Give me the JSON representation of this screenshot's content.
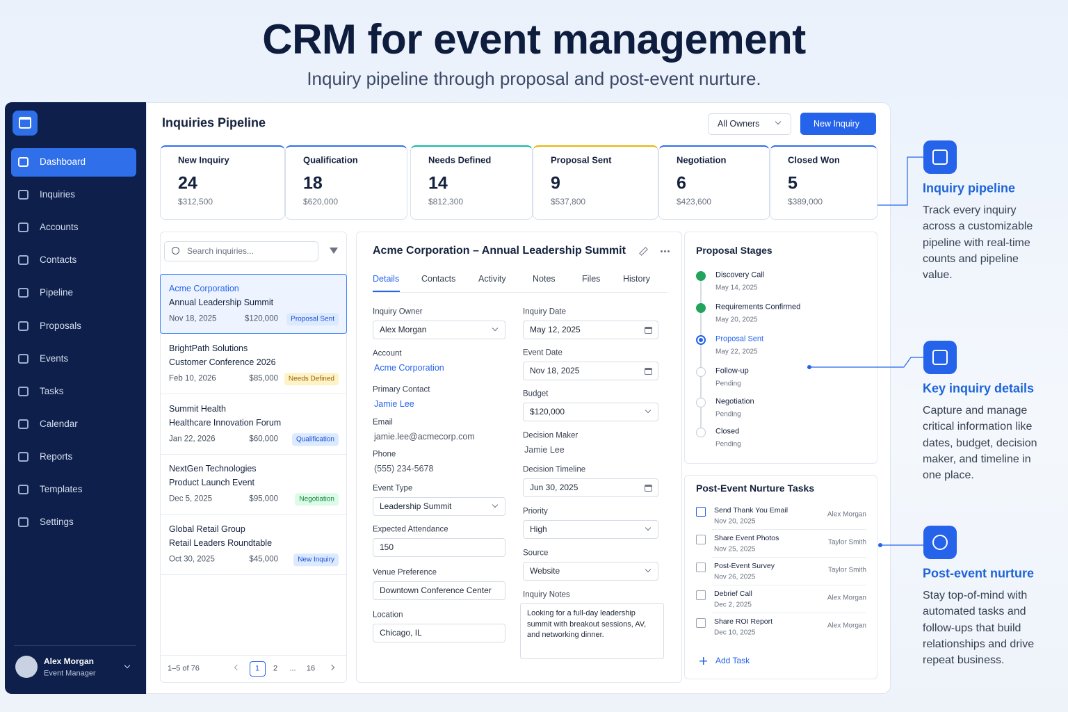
{
  "header": {
    "title": "CRM for event management",
    "subtitle": "Inquiry pipeline through proposal and post-event nurture."
  },
  "sidebar": {
    "nav": [
      "Dashboard",
      "Inquiries",
      "Accounts",
      "Contacts",
      "Pipeline",
      "Proposals",
      "Events",
      "Tasks",
      "Calendar",
      "Reports",
      "Templates",
      "Settings"
    ],
    "user": {
      "name": "Alex Morgan",
      "role": "Event Manager"
    }
  },
  "main": {
    "title": "Inquiries Pipeline",
    "owner_filter": "All Owners",
    "new_button": "New Inquiry",
    "stages": [
      {
        "name": "New Inquiry",
        "count": 24,
        "amount": "$312,500"
      },
      {
        "name": "Qualification",
        "count": 18,
        "amount": "$620,000"
      },
      {
        "name": "Needs Defined",
        "count": 14,
        "amount": "$812,300"
      },
      {
        "name": "Proposal Sent",
        "count": 9,
        "amount": "$537,800"
      },
      {
        "name": "Negotiation",
        "count": 6,
        "amount": "$423,600"
      },
      {
        "name": "Closed Won",
        "count": 5,
        "amount": "$389,000"
      }
    ],
    "list": {
      "search_placeholder": "Search inquiries...",
      "items": [
        {
          "account": "Acme Corporation",
          "event": "Annual Leadership Summit",
          "date": "Nov 18, 2025",
          "amount": "$120,000",
          "status": "Proposal Sent"
        },
        {
          "account": "BrightPath Solutions",
          "event": "Customer Conference 2026",
          "date": "Feb 10, 2026",
          "amount": "$85,000",
          "status": "Needs Defined"
        },
        {
          "account": "Summit Health",
          "event": "Healthcare Innovation Forum",
          "date": "Jan 22, 2026",
          "amount": "$60,000",
          "status": "Qualification"
        },
        {
          "account": "NextGen Technologies",
          "event": "Product Launch Event",
          "date": "Dec 5, 2025",
          "amount": "$95,000",
          "status": "Negotiation"
        },
        {
          "account": "Global Retail Group",
          "event": "Retail Leaders Roundtable",
          "date": "Oct 30, 2025",
          "amount": "$45,000",
          "status": "New Inquiry"
        }
      ],
      "pagination": {
        "range": "1–5 of 76",
        "pages": [
          "1",
          "2",
          "...",
          "16"
        ]
      }
    },
    "detail": {
      "title": "Acme Corporation – Annual Leadership Summit",
      "tabs": [
        "Details",
        "Contacts",
        "Activity",
        "Notes",
        "Files",
        "History"
      ],
      "left_fields": [
        {
          "label": "Inquiry Owner",
          "value": "Alex Morgan"
        },
        {
          "label": "Account",
          "value": "Acme Corporation"
        },
        {
          "label": "Primary Contact",
          "value": "Jamie Lee"
        },
        {
          "label": "Email",
          "value": "jamie.lee@acmecorp.com"
        },
        {
          "label": "Phone",
          "value": "(555) 234-5678"
        },
        {
          "label": "Event Type",
          "value": "Leadership Summit"
        },
        {
          "label": "Expected Attendance",
          "value": "150"
        },
        {
          "label": "Venue Preference",
          "value": "Downtown Conference Center"
        },
        {
          "label": "Location",
          "value": "Chicago, IL"
        }
      ],
      "right_fields": [
        {
          "label": "Inquiry Date",
          "value": "May 12, 2025"
        },
        {
          "label": "Event Date",
          "value": "Nov 18, 2025"
        },
        {
          "label": "Budget",
          "value": "$120,000"
        },
        {
          "label": "Decision Maker",
          "value": "Jamie Lee"
        },
        {
          "label": "Decision Timeline",
          "value": "Jun 30, 2025"
        },
        {
          "label": "Priority",
          "value": "High"
        },
        {
          "label": "Source",
          "value": "Website"
        }
      ],
      "notes_label": "Inquiry Notes",
      "notes": "Looking for a full-day leadership summit with breakout sessions, AV, and networking dinner."
    },
    "proposal": {
      "title": "Proposal Stages",
      "steps": [
        {
          "name": "Discovery Call",
          "date": "May 14, 2025"
        },
        {
          "name": "Requirements Confirmed",
          "date": "May 20, 2025"
        },
        {
          "name": "Proposal Sent",
          "date": "May 22, 2025"
        },
        {
          "name": "Follow-up",
          "date": "Pending"
        },
        {
          "name": "Negotiation",
          "date": "Pending"
        },
        {
          "name": "Closed",
          "date": "Pending"
        }
      ]
    },
    "nurture": {
      "title": "Post-Event Nurture Tasks",
      "tasks": [
        {
          "name": "Send Thank You Email",
          "date": "Nov 20, 2025",
          "owner": "Alex Morgan"
        },
        {
          "name": "Share Event Photos",
          "date": "Nov 25, 2025",
          "owner": "Taylor Smith"
        },
        {
          "name": "Post-Event Survey",
          "date": "Nov 26, 2025",
          "owner": "Taylor Smith"
        },
        {
          "name": "Debrief Call",
          "date": "Dec 2, 2025",
          "owner": "Alex Morgan"
        },
        {
          "name": "Share ROI Report",
          "date": "Dec 10, 2025",
          "owner": "Alex Morgan"
        }
      ],
      "add": "Add Task"
    }
  },
  "callouts": [
    {
      "title": "Inquiry pipeline",
      "text": "Track every inquiry across a customizable pipeline with real-time counts and pipeline value."
    },
    {
      "title": "Key inquiry details",
      "text": "Capture and manage critical information like dates, budget, decision maker, and timeline in one place."
    },
    {
      "title": "Post-event nurture",
      "text": "Stay top-of-mind with automated tasks and follow-ups that build relationships and drive repeat business."
    }
  ]
}
